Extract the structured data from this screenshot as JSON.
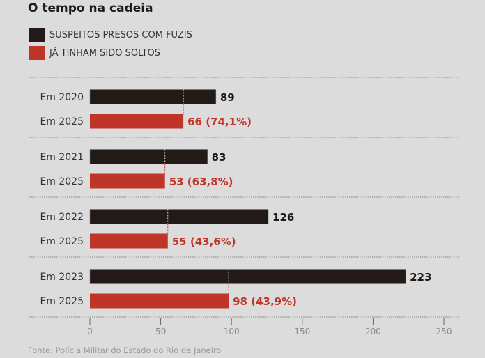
{
  "title": "O tempo na cadeia",
  "source": "Fonte: Polícia Militar do Estado do Rio de Janeiro",
  "colors": {
    "dark": "#221a17",
    "red": "#bf3628",
    "background": "#dcdcdc"
  },
  "chart_data": {
    "type": "bar",
    "orientation": "horizontal",
    "title": "O tempo na cadeia",
    "legend": [
      {
        "label": "SUSPEITOS PRESOS COM FUZIS",
        "color": "#221a17"
      },
      {
        "label": "JÁ TINHAM SIDO SOLTOS",
        "color": "#bf3628"
      }
    ],
    "legend_position": "top-left",
    "xlim": [
      0,
      250
    ],
    "xticks": [
      0,
      50,
      100,
      150,
      200,
      250
    ],
    "groups": [
      {
        "label": "Em 2020",
        "value": 89,
        "value_label": "89",
        "released_label": "Em 2025",
        "released": 66,
        "released_value_label": "66 (74,1%)"
      },
      {
        "label": "Em 2021",
        "value": 83,
        "value_label": "83",
        "released_label": "Em 2025",
        "released": 53,
        "released_value_label": "53 (63,8%)"
      },
      {
        "label": "Em 2022",
        "value": 126,
        "value_label": "126",
        "released_label": "Em 2025",
        "released": 55,
        "released_value_label": "55 (43,6%)"
      },
      {
        "label": "Em 2023",
        "value": 223,
        "value_label": "223",
        "released_label": "Em 2025",
        "released": 98,
        "released_value_label": "98 (43,9%)"
      }
    ]
  }
}
